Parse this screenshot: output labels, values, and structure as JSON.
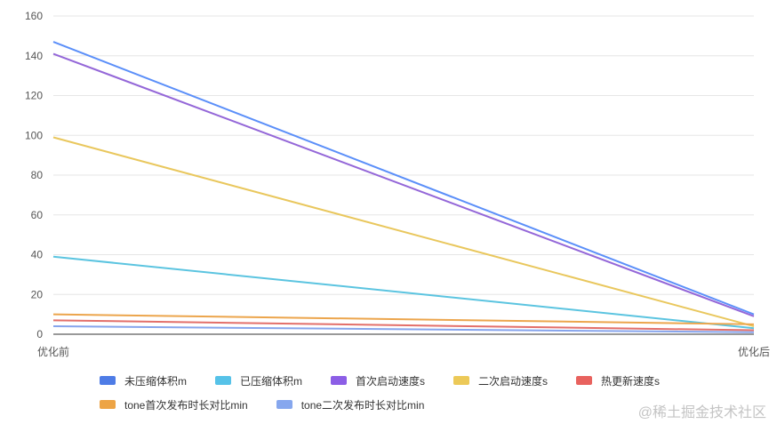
{
  "chart_data": {
    "type": "line",
    "categories": [
      "优化前",
      "优化后"
    ],
    "ylim": [
      0,
      160
    ],
    "yticks": [
      0,
      20,
      40,
      60,
      80,
      100,
      120,
      140,
      160
    ],
    "grid": true,
    "legend_position": "bottom",
    "series": [
      {
        "name": "未压缩体积m",
        "color": "#5b8ff9",
        "legend_color": "#4e7ce6",
        "values": [
          147,
          10
        ]
      },
      {
        "name": "已压缩体积m",
        "color": "#5bc4e0",
        "legend_color": "#56c2e8",
        "values": [
          39,
          3
        ]
      },
      {
        "name": "首次启动速度s",
        "color": "#9467d8",
        "legend_color": "#8c5ee6",
        "values": [
          141,
          9
        ]
      },
      {
        "name": "二次启动速度s",
        "color": "#e9c75d",
        "legend_color": "#ecc958",
        "values": [
          99,
          4
        ]
      },
      {
        "name": "热更新速度s",
        "color": "#e36f6a",
        "legend_color": "#e8625e",
        "values": [
          7,
          2
        ]
      },
      {
        "name": "tone首次发布时长对比min",
        "color": "#eca54c",
        "legend_color": "#eda445",
        "values": [
          10,
          5
        ]
      },
      {
        "name": "tone二次发布时长对比min",
        "color": "#86a4ec",
        "legend_color": "#86a7ee",
        "values": [
          4,
          1
        ]
      }
    ]
  },
  "watermark": "@稀土掘金技术社区"
}
